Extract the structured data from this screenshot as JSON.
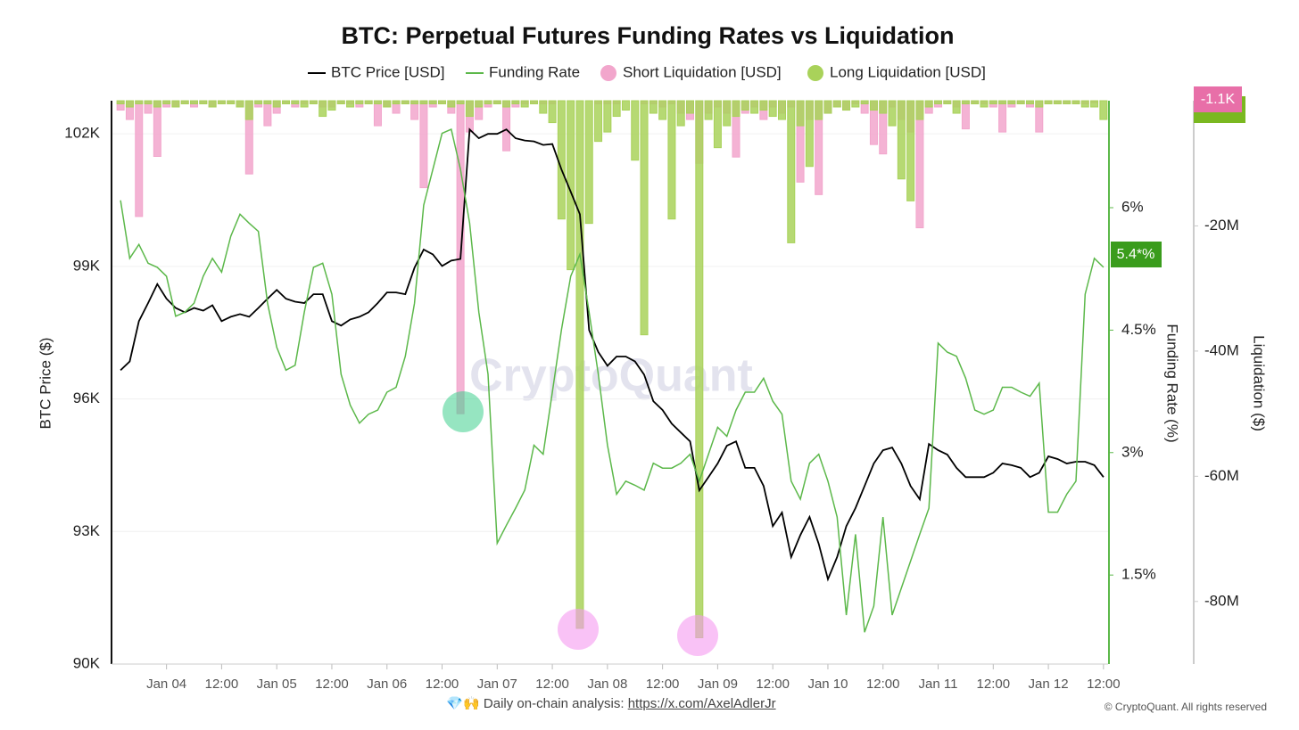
{
  "chart_data": {
    "type": "line",
    "title": "BTC: Perpetual Futures Funding Rates vs Liquidation",
    "y_label": "BTC Price ($)",
    "y2_label": "Funding Rate (%)",
    "y3_label": "Liquidation ($)",
    "watermark": "CryptoQuant",
    "last_funding_label": "5.4*%",
    "last_short_label": "-1.1K",
    "footer_text": "💎🙌 Daily on-chain analysis:",
    "footer_link": "https://x.com/AxelAdlerJr",
    "copyright": "© CryptoQuant. All rights reserved",
    "xlim": [
      "Jan 03 13:00",
      "Jan 12 13:00"
    ],
    "xticks": [
      {
        "value": "Jan 04 00:00",
        "label": "Jan 04"
      },
      {
        "value": "Jan 04 12:00",
        "label": "12:00"
      },
      {
        "value": "Jan 05 00:00",
        "label": "Jan 05"
      },
      {
        "value": "Jan 05 12:00",
        "label": "12:00"
      },
      {
        "value": "Jan 06 00:00",
        "label": "Jan 06"
      },
      {
        "value": "Jan 06 12:00",
        "label": "12:00"
      },
      {
        "value": "Jan 07 00:00",
        "label": "Jan 07"
      },
      {
        "value": "Jan 07 12:00",
        "label": "12:00"
      },
      {
        "value": "Jan 08 00:00",
        "label": "Jan 08"
      },
      {
        "value": "Jan 08 12:00",
        "label": "12:00"
      },
      {
        "value": "Jan 09 00:00",
        "label": "Jan 09"
      },
      {
        "value": "Jan 09 12:00",
        "label": "12:00"
      },
      {
        "value": "Jan 10 00:00",
        "label": "Jan 10"
      },
      {
        "value": "Jan 10 12:00",
        "label": "12:00"
      },
      {
        "value": "Jan 11 00:00",
        "label": "Jan 11"
      },
      {
        "value": "Jan 11 12:00",
        "label": "12:00"
      },
      {
        "value": "Jan 12 00:00",
        "label": "Jan 12"
      },
      {
        "value": "Jan 12 12:00",
        "label": "12:00"
      }
    ],
    "ylim": [
      90000,
      102750
    ],
    "yticks": [
      {
        "value": 90000,
        "label": "90K"
      },
      {
        "value": 93000,
        "label": "93K"
      },
      {
        "value": 96000,
        "label": "96K"
      },
      {
        "value": 99000,
        "label": "99K"
      },
      {
        "value": 102000,
        "label": "102K"
      }
    ],
    "y2lim": [
      0.41,
      7.31
    ],
    "y2ticks": [
      {
        "value": 1.5,
        "label": "1.5%"
      },
      {
        "value": 3,
        "label": "3%"
      },
      {
        "value": 4.5,
        "label": "4.5%"
      },
      {
        "value": 6,
        "label": "6%"
      }
    ],
    "y3lim": [
      -90,
      0
    ],
    "y3ticks": [
      {
        "value": -80,
        "label": "-80M"
      },
      {
        "value": -60,
        "label": "-60M"
      },
      {
        "value": -40,
        "label": "-40M"
      },
      {
        "value": -20,
        "label": "-20M"
      }
    ],
    "grid": true,
    "x": [
      "Jan 03 14:00",
      "Jan 03 16:00",
      "Jan 03 18:00",
      "Jan 03 20:00",
      "Jan 03 22:00",
      "Jan 04 00:00",
      "Jan 04 02:00",
      "Jan 04 04:00",
      "Jan 04 06:00",
      "Jan 04 08:00",
      "Jan 04 10:00",
      "Jan 04 12:00",
      "Jan 04 14:00",
      "Jan 04 16:00",
      "Jan 04 18:00",
      "Jan 04 20:00",
      "Jan 04 22:00",
      "Jan 05 00:00",
      "Jan 05 02:00",
      "Jan 05 04:00",
      "Jan 05 06:00",
      "Jan 05 08:00",
      "Jan 05 10:00",
      "Jan 05 12:00",
      "Jan 05 14:00",
      "Jan 05 16:00",
      "Jan 05 18:00",
      "Jan 05 20:00",
      "Jan 05 22:00",
      "Jan 06 00:00",
      "Jan 06 02:00",
      "Jan 06 04:00",
      "Jan 06 06:00",
      "Jan 06 08:00",
      "Jan 06 10:00",
      "Jan 06 12:00",
      "Jan 06 14:00",
      "Jan 06 16:00",
      "Jan 06 18:00",
      "Jan 06 20:00",
      "Jan 06 22:00",
      "Jan 07 00:00",
      "Jan 07 02:00",
      "Jan 07 04:00",
      "Jan 07 06:00",
      "Jan 07 08:00",
      "Jan 07 10:00",
      "Jan 07 12:00",
      "Jan 07 14:00",
      "Jan 07 16:00",
      "Jan 07 18:00",
      "Jan 07 20:00",
      "Jan 07 22:00",
      "Jan 08 00:00",
      "Jan 08 02:00",
      "Jan 08 04:00",
      "Jan 08 06:00",
      "Jan 08 08:00",
      "Jan 08 10:00",
      "Jan 08 12:00",
      "Jan 08 14:00",
      "Jan 08 16:00",
      "Jan 08 18:00",
      "Jan 08 20:00",
      "Jan 08 22:00",
      "Jan 09 00:00",
      "Jan 09 02:00",
      "Jan 09 04:00",
      "Jan 09 06:00",
      "Jan 09 08:00",
      "Jan 09 10:00",
      "Jan 09 12:00",
      "Jan 09 14:00",
      "Jan 09 16:00",
      "Jan 09 18:00",
      "Jan 09 20:00",
      "Jan 09 22:00",
      "Jan 10 00:00",
      "Jan 10 02:00",
      "Jan 10 04:00",
      "Jan 10 06:00",
      "Jan 10 08:00",
      "Jan 10 10:00",
      "Jan 10 12:00",
      "Jan 10 14:00",
      "Jan 10 16:00",
      "Jan 10 18:00",
      "Jan 10 20:00",
      "Jan 10 22:00",
      "Jan 11 00:00",
      "Jan 11 02:00",
      "Jan 11 04:00",
      "Jan 11 06:00",
      "Jan 11 08:00",
      "Jan 11 10:00",
      "Jan 11 12:00",
      "Jan 11 14:00",
      "Jan 11 16:00",
      "Jan 11 18:00",
      "Jan 11 20:00",
      "Jan 11 22:00",
      "Jan 12 00:00",
      "Jan 12 02:00",
      "Jan 12 04:00",
      "Jan 12 06:00",
      "Jan 12 08:00",
      "Jan 12 10:00",
      "Jan 12 12:00"
    ],
    "series": [
      {
        "name": "BTC Price [USD]",
        "type": "line",
        "axis": "y",
        "color": "#000000",
        "values": [
          96650,
          96850,
          97760,
          98170,
          98600,
          98270,
          98060,
          97960,
          98060,
          98000,
          98120,
          97760,
          97860,
          97920,
          97860,
          98060,
          98270,
          98470,
          98270,
          98200,
          98170,
          98370,
          98370,
          97760,
          97660,
          97800,
          97860,
          97960,
          98170,
          98410,
          98410,
          98370,
          98970,
          99380,
          99270,
          99010,
          99130,
          99170,
          102100,
          101900,
          102000,
          102000,
          102100,
          101900,
          101850,
          101830,
          101750,
          101770,
          101190,
          100690,
          100180,
          97560,
          97060,
          96750,
          96960,
          96960,
          96850,
          96550,
          95950,
          95750,
          95440,
          95240,
          95040,
          93930,
          94230,
          94540,
          94940,
          95040,
          94440,
          94440,
          94030,
          93120,
          93430,
          92420,
          92920,
          93330,
          92720,
          91920,
          92420,
          93120,
          93530,
          94030,
          94540,
          94840,
          94900,
          94540,
          94030,
          93730,
          94980,
          94840,
          94740,
          94440,
          94230,
          94230,
          94230,
          94330,
          94540,
          94500,
          94440,
          94230,
          94330,
          94700,
          94640,
          94540,
          94580,
          94580,
          94500,
          94230
        ]
      },
      {
        "name": "Funding Rate",
        "type": "line",
        "axis": "y2",
        "color": "#5cb84a",
        "values": [
          6.09,
          5.38,
          5.55,
          5.32,
          5.27,
          5.16,
          4.67,
          4.72,
          4.83,
          5.16,
          5.38,
          5.21,
          5.65,
          5.92,
          5.81,
          5.71,
          4.83,
          4.29,
          4.01,
          4.07,
          4.72,
          5.27,
          5.32,
          4.94,
          3.96,
          3.58,
          3.36,
          3.47,
          3.52,
          3.74,
          3.8,
          4.18,
          4.83,
          6.03,
          6.47,
          6.91,
          6.96,
          6.47,
          5.81,
          4.72,
          3.96,
          1.89,
          2.11,
          2.32,
          2.54,
          3.09,
          2.98,
          3.74,
          4.51,
          5.16,
          5.43,
          4.72,
          3.96,
          3.09,
          2.49,
          2.65,
          2.6,
          2.54,
          2.87,
          2.81,
          2.81,
          2.87,
          2.98,
          2.65,
          2.98,
          3.31,
          3.2,
          3.52,
          3.74,
          3.74,
          3.91,
          3.63,
          3.47,
          2.65,
          2.43,
          2.87,
          2.98,
          2.65,
          2.21,
          1.01,
          2.0,
          0.8,
          1.12,
          2.21,
          1.01,
          1.34,
          1.67,
          2.0,
          2.32,
          4.34,
          4.23,
          4.18,
          3.91,
          3.52,
          3.47,
          3.52,
          3.8,
          3.8,
          3.74,
          3.69,
          3.85,
          2.27,
          2.27,
          2.49,
          2.65,
          4.94,
          5.38,
          5.27
        ]
      },
      {
        "name": "Short Liquidation [USD]",
        "type": "bar",
        "axis": "y3",
        "color": "#f2a6cc",
        "values": [
          -1.5,
          -3,
          -18.5,
          -2,
          -8.9,
          -1,
          -1,
          -0.5,
          -1,
          -0.5,
          -1,
          -0.5,
          -0.5,
          -1,
          -11.7,
          -1,
          -4,
          -2,
          -0.5,
          -1,
          -0.5,
          -0.5,
          -1,
          -1,
          -0.5,
          -0.5,
          -1,
          -0.5,
          -4,
          -1,
          -2,
          -0.5,
          -3,
          -13.9,
          -1,
          -0.5,
          -2,
          -50,
          -5,
          -3,
          -1,
          -0.5,
          -8,
          -1,
          -0.5,
          -0.5,
          -0.5,
          -0.5,
          0,
          0,
          0,
          0,
          -0.5,
          -0.5,
          -0.5,
          0,
          0,
          -0.5,
          -0.5,
          -1,
          -0.5,
          -2,
          -3,
          -10,
          -2,
          -1,
          -2,
          -9,
          -2,
          -1,
          -3,
          -1,
          -2,
          -1,
          -13,
          -3,
          -15,
          -2,
          -1,
          -1.5,
          -0.5,
          -2,
          -7,
          -8.5,
          -1,
          -3,
          -5,
          -20.3,
          -2,
          -1,
          -0.5,
          -1,
          -4.5,
          -0.5,
          -0.5,
          -1,
          -5,
          -1,
          -0.5,
          -1,
          -5,
          -0.5,
          -0.5,
          -0.5,
          -0.5,
          -0.5,
          -0.3,
          -0.0011
        ]
      },
      {
        "name": "Long Liquidation [USD]",
        "type": "bar",
        "axis": "y3",
        "color": "#a9d25a",
        "values": [
          -0.5,
          -1,
          -0.5,
          -0.5,
          -1,
          -0.5,
          -1,
          -0.5,
          -0.5,
          -0.5,
          -1,
          -0.5,
          -0.5,
          -1,
          -3,
          -0.5,
          -0.5,
          -1,
          -0.5,
          -0.5,
          -1,
          -0.5,
          -2.5,
          -1.5,
          -0.5,
          -1,
          -0.5,
          -0.5,
          -0.5,
          -1,
          -0.5,
          -0.5,
          -0.5,
          -0.5,
          -0.5,
          -0.5,
          -1,
          -0.5,
          -2.5,
          -1,
          -0.5,
          -0.5,
          -1,
          -0.5,
          -1,
          -0.5,
          -2,
          -3.5,
          -18.9,
          -27,
          -84.3,
          -19.6,
          -6.5,
          -5,
          -2.5,
          -1.5,
          -9.5,
          -37.4,
          -2,
          -3,
          -18.9,
          -4,
          -2,
          -85.8,
          -3,
          -7.5,
          -4,
          -2.5,
          -1.5,
          -2,
          -1.5,
          -2.5,
          -3,
          -22.7,
          -4,
          -10.5,
          -3,
          -2,
          -1,
          -1.5,
          -1,
          -0.5,
          -1.5,
          -2,
          -4,
          -12.5,
          -16,
          -3,
          -1,
          -0.5,
          -0.5,
          -2,
          -0.5,
          -0.5,
          -1,
          -0.5,
          -0.5,
          -0.5,
          -0.5,
          -0.5,
          -1,
          -0.5,
          -0.5,
          -0.5,
          -0.5,
          -1,
          -1,
          -3
        ]
      }
    ]
  }
}
